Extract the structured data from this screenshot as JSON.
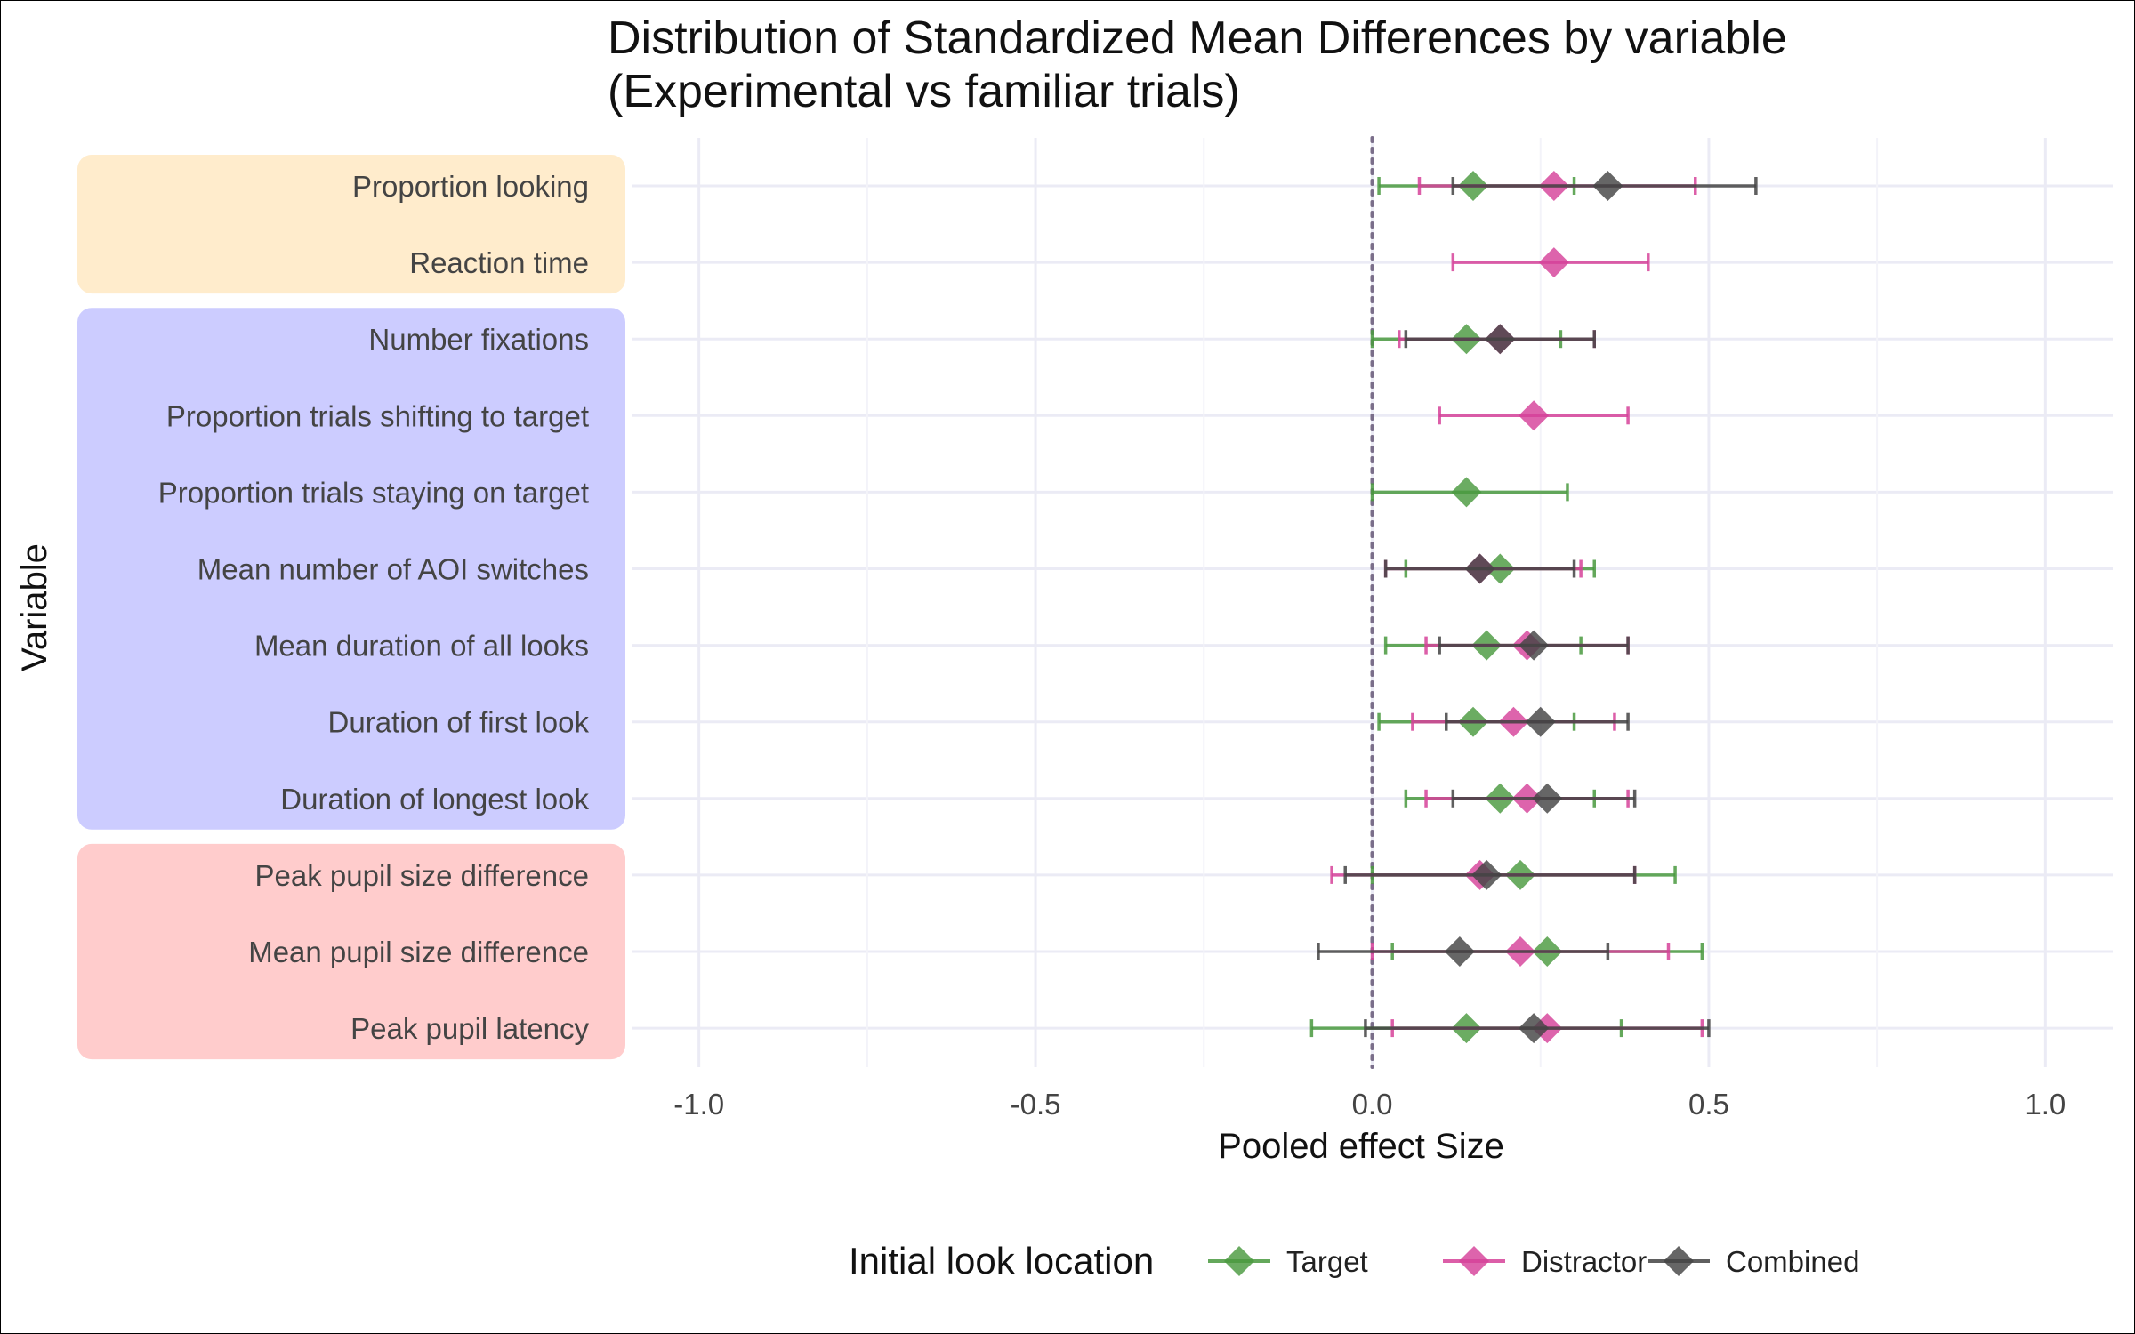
{
  "chart_data": {
    "type": "forest",
    "title": [
      "Distribution of Standardized Mean Differences by variable",
      "(Experimental vs familiar trials)"
    ],
    "xlabel": "Pooled effect Size",
    "ylabel": "Variable",
    "xlim": [
      -1.1,
      1.1
    ],
    "xticks": [
      -1.0,
      -0.5,
      0.0,
      0.5,
      1.0
    ],
    "xtick_labels": [
      "-1.0",
      "-0.5",
      "0.0",
      "0.5",
      "1.0"
    ],
    "reference_line": 0,
    "grid": true,
    "legend": {
      "title": "Initial look location",
      "placement": "bottom",
      "items": [
        "Target",
        "Distractor",
        "Combined"
      ]
    },
    "colors": {
      "Target": "#4a9a3f",
      "Distractor": "#d6429a",
      "Combined": "#444444"
    },
    "groups": [
      {
        "color": "#ffeccc",
        "variables": [
          "Proportion looking",
          "Reaction time"
        ]
      },
      {
        "color": "#ccccff",
        "variables": [
          "Number fixations",
          "Proportion trials shifting to target",
          "Proportion trials staying on target",
          "Mean number of AOI switches",
          "Mean duration of all looks",
          "Duration of first look",
          "Duration of longest look"
        ]
      },
      {
        "color": "#ffcccc",
        "variables": [
          "Peak pupil size difference",
          "Mean pupil size difference",
          "Peak pupil latency"
        ]
      }
    ],
    "variables": [
      "Proportion looking",
      "Reaction time",
      "Number fixations",
      "Proportion trials shifting to target",
      "Proportion trials staying on target",
      "Mean number of AOI switches",
      "Mean duration of all looks",
      "Duration of first look",
      "Duration of longest look",
      "Peak pupil size difference",
      "Mean pupil size difference",
      "Peak pupil latency"
    ],
    "series": [
      {
        "name": "Target",
        "points": [
          {
            "variable": "Proportion looking",
            "estimate": 0.15,
            "lower": 0.01,
            "upper": 0.3
          },
          {
            "variable": "Number fixations",
            "estimate": 0.14,
            "lower": 0.0,
            "upper": 0.28
          },
          {
            "variable": "Proportion trials staying on target",
            "estimate": 0.14,
            "lower": 0.0,
            "upper": 0.29
          },
          {
            "variable": "Mean number of AOI switches",
            "estimate": 0.19,
            "lower": 0.05,
            "upper": 0.33
          },
          {
            "variable": "Mean duration of all looks",
            "estimate": 0.17,
            "lower": 0.02,
            "upper": 0.31
          },
          {
            "variable": "Duration of first look",
            "estimate": 0.15,
            "lower": 0.01,
            "upper": 0.3
          },
          {
            "variable": "Duration of longest look",
            "estimate": 0.19,
            "lower": 0.05,
            "upper": 0.33
          },
          {
            "variable": "Peak pupil size difference",
            "estimate": 0.22,
            "lower": 0.0,
            "upper": 0.45
          },
          {
            "variable": "Mean pupil size difference",
            "estimate": 0.26,
            "lower": 0.03,
            "upper": 0.49
          },
          {
            "variable": "Peak pupil latency",
            "estimate": 0.14,
            "lower": -0.09,
            "upper": 0.37
          }
        ]
      },
      {
        "name": "Distractor",
        "points": [
          {
            "variable": "Proportion looking",
            "estimate": 0.27,
            "lower": 0.07,
            "upper": 0.48
          },
          {
            "variable": "Reaction time",
            "estimate": 0.27,
            "lower": 0.12,
            "upper": 0.41
          },
          {
            "variable": "Number fixations",
            "estimate": 0.19,
            "lower": 0.04,
            "upper": 0.33
          },
          {
            "variable": "Proportion trials shifting to target",
            "estimate": 0.24,
            "lower": 0.1,
            "upper": 0.38
          },
          {
            "variable": "Mean number of AOI switches",
            "estimate": 0.16,
            "lower": 0.02,
            "upper": 0.31
          },
          {
            "variable": "Mean duration of all looks",
            "estimate": 0.23,
            "lower": 0.08,
            "upper": 0.38
          },
          {
            "variable": "Duration of first look",
            "estimate": 0.21,
            "lower": 0.06,
            "upper": 0.36
          },
          {
            "variable": "Duration of longest look",
            "estimate": 0.23,
            "lower": 0.08,
            "upper": 0.38
          },
          {
            "variable": "Peak pupil size difference",
            "estimate": 0.16,
            "lower": -0.06,
            "upper": 0.39
          },
          {
            "variable": "Mean pupil size difference",
            "estimate": 0.22,
            "lower": 0.0,
            "upper": 0.44
          },
          {
            "variable": "Peak pupil latency",
            "estimate": 0.26,
            "lower": 0.03,
            "upper": 0.49
          }
        ]
      },
      {
        "name": "Combined",
        "points": [
          {
            "variable": "Proportion looking",
            "estimate": 0.35,
            "lower": 0.12,
            "upper": 0.57
          },
          {
            "variable": "Number fixations",
            "estimate": 0.19,
            "lower": 0.05,
            "upper": 0.33
          },
          {
            "variable": "Mean number of AOI switches",
            "estimate": 0.16,
            "lower": 0.02,
            "upper": 0.3
          },
          {
            "variable": "Mean duration of all looks",
            "estimate": 0.24,
            "lower": 0.1,
            "upper": 0.38
          },
          {
            "variable": "Duration of first look",
            "estimate": 0.25,
            "lower": 0.11,
            "upper": 0.38
          },
          {
            "variable": "Duration of longest look",
            "estimate": 0.26,
            "lower": 0.12,
            "upper": 0.39
          },
          {
            "variable": "Peak pupil size difference",
            "estimate": 0.17,
            "lower": -0.04,
            "upper": 0.39
          },
          {
            "variable": "Mean pupil size difference",
            "estimate": 0.13,
            "lower": -0.08,
            "upper": 0.35
          },
          {
            "variable": "Peak pupil latency",
            "estimate": 0.24,
            "lower": -0.01,
            "upper": 0.5
          }
        ]
      }
    ]
  }
}
